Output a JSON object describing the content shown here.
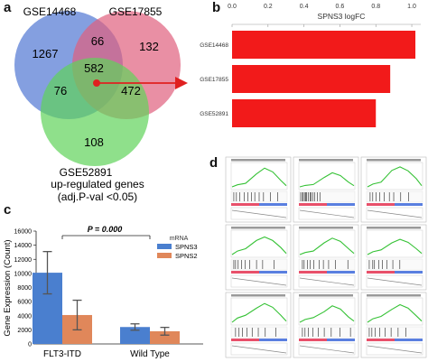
{
  "panels": {
    "a": "a",
    "b": "b",
    "c": "c",
    "d": "d"
  },
  "venn": {
    "set_labels": [
      "GSE14468",
      "GSE17855",
      "GSE52891"
    ],
    "regions": {
      "only_a": "1267",
      "only_b": "132",
      "only_c": "108",
      "ab": "66",
      "ac": "76",
      "bc": "472",
      "abc": "582"
    },
    "caption_line1": "up-regulated genes",
    "caption_line2": "(adj.P-val <0.05)",
    "colors": {
      "a": "#5b7fd6",
      "b": "#e0607e",
      "c": "#5fd35a",
      "arrow": "#e02020"
    }
  },
  "chart_data": [
    {
      "type": "bar",
      "orientation": "horizontal",
      "title": "SPNS3 logFC",
      "categories": [
        "GSE14468",
        "GSE17855",
        "GSE52891"
      ],
      "values": [
        1.02,
        0.88,
        0.8
      ],
      "xlim": [
        0,
        1.05
      ],
      "xticks": [
        "0.0",
        "0.2",
        "0.4",
        "0.6",
        "0.8",
        "1.0"
      ],
      "tick_values": [
        0,
        0.2,
        0.4,
        0.6,
        0.8,
        1.0
      ],
      "color": "#f21a1a"
    },
    {
      "type": "bar",
      "title": "P = 0.000",
      "ylabel": "Gene Expression (Count)",
      "categories": [
        "FLT3-ITD",
        "Wild Type"
      ],
      "legend_title": "mRNA",
      "legend_position": "top-right",
      "yticks": [
        "0",
        "2000",
        "4000",
        "6000",
        "8000",
        "10000",
        "12000",
        "14000",
        "16000"
      ],
      "tick_values": [
        0,
        2000,
        4000,
        6000,
        8000,
        10000,
        12000,
        14000,
        16000
      ],
      "ylim": [
        0,
        16000
      ],
      "series": [
        {
          "name": "SPNS3",
          "color": "#4a7fcf",
          "values": [
            10100,
            2400
          ],
          "errors": [
            3000,
            450
          ]
        },
        {
          "name": "SPNS2",
          "color": "#e0875a",
          "values": [
            4100,
            1800
          ],
          "errors": [
            2100,
            550
          ]
        }
      ]
    }
  ],
  "gsea_grid": {
    "rows": 3,
    "cols": 3
  }
}
